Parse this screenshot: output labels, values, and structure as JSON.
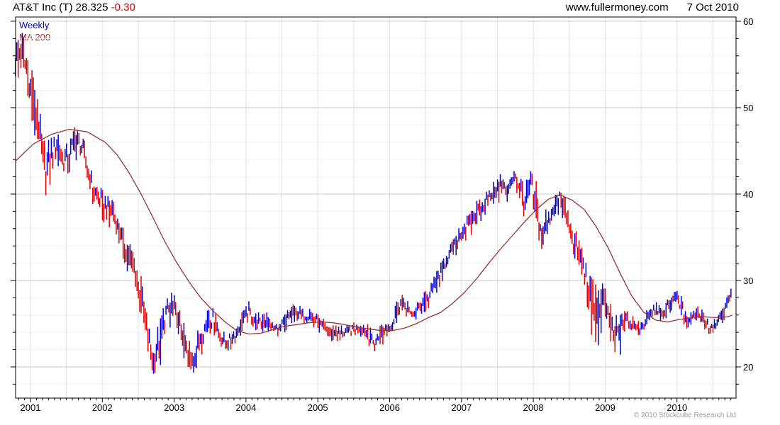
{
  "header": {
    "quote": "AT&T Inc (T) 28.325",
    "change": "-0.30",
    "site": "www.fullermoney.com",
    "date": "7 Oct 2010"
  },
  "footer": {
    "copyright": "© 2010 Stockcube Research Ltd"
  },
  "chart_data": {
    "type": "bar",
    "subtype": "weekly-ohlc-range-bars-with-ma",
    "title": "AT&T Inc (T) weekly with 200-day MA",
    "legend": [
      {
        "label": "Weekly",
        "color": "#0000cc"
      },
      {
        "label": "MA 200",
        "color": "#993333"
      }
    ],
    "colors": {
      "up_bar": "#0000dd",
      "down_bar": "#e00000",
      "ma_line": "#993333",
      "grid_major": "#c9c9c9",
      "grid_minor": "#f0f0f0",
      "grid_vert": "#e3e3e3",
      "frame": "#000000"
    },
    "x_range": [
      2000.7927,
      2010.8221
    ],
    "y_range": [
      16.39,
      60.49
    ],
    "y_ticks_major": [
      20,
      30,
      40,
      50,
      60
    ],
    "y_tick_minor_step": 2,
    "x_tick_years": [
      2001,
      2002,
      2003,
      2004,
      2005,
      2006,
      2007,
      2008,
      2009,
      2010
    ],
    "grid_vertical_step_years": 0.5,
    "bars_per_year": 52,
    "price_monthly": [
      [
        2000.79,
        58.5,
        53.0,
        56.0
      ],
      [
        2000.87,
        59.0,
        54.0,
        56.5
      ],
      [
        2000.96,
        57.0,
        51.5,
        54.0
      ],
      [
        2001.04,
        53.5,
        47.5,
        50.0
      ],
      [
        2001.12,
        50.0,
        44.5,
        47.5
      ],
      [
        2001.21,
        46.0,
        39.8,
        42.5
      ],
      [
        2001.29,
        46.5,
        41.5,
        44.5
      ],
      [
        2001.37,
        47.5,
        43.5,
        46.0
      ],
      [
        2001.46,
        46.5,
        42.0,
        44.0
      ],
      [
        2001.54,
        46.0,
        42.5,
        44.5
      ],
      [
        2001.62,
        47.8,
        44.0,
        46.5
      ],
      [
        2001.71,
        47.5,
        43.5,
        45.5
      ],
      [
        2001.79,
        45.5,
        41.0,
        43.0
      ],
      [
        2001.87,
        43.0,
        38.5,
        40.5
      ],
      [
        2001.96,
        41.0,
        37.5,
        39.5
      ],
      [
        2002.04,
        40.0,
        36.5,
        38.5
      ],
      [
        2002.12,
        39.5,
        36.0,
        38.0
      ],
      [
        2002.21,
        38.5,
        35.0,
        36.5
      ],
      [
        2002.29,
        36.5,
        32.5,
        34.5
      ],
      [
        2002.37,
        35.5,
        30.5,
        33.0
      ],
      [
        2002.46,
        34.0,
        29.0,
        31.0
      ],
      [
        2002.54,
        30.5,
        25.0,
        27.5
      ],
      [
        2002.62,
        27.0,
        21.5,
        24.0
      ],
      [
        2002.71,
        23.5,
        19.2,
        20.5
      ],
      [
        2002.79,
        25.0,
        19.5,
        23.0
      ],
      [
        2002.87,
        27.5,
        22.5,
        26.0
      ],
      [
        2002.96,
        28.6,
        25.0,
        27.0
      ],
      [
        2003.04,
        28.0,
        24.5,
        26.0
      ],
      [
        2003.12,
        26.0,
        21.5,
        23.5
      ],
      [
        2003.21,
        23.0,
        18.8,
        20.5
      ],
      [
        2003.29,
        23.5,
        19.5,
        21.5
      ],
      [
        2003.37,
        25.0,
        21.0,
        23.5
      ],
      [
        2003.46,
        26.5,
        23.5,
        25.0
      ],
      [
        2003.54,
        26.8,
        24.0,
        25.5
      ],
      [
        2003.62,
        25.5,
        22.5,
        24.0
      ],
      [
        2003.71,
        24.5,
        21.8,
        22.8
      ],
      [
        2003.79,
        24.5,
        22.0,
        23.2
      ],
      [
        2003.87,
        25.5,
        23.0,
        24.0
      ],
      [
        2003.96,
        26.5,
        24.0,
        25.5
      ],
      [
        2004.04,
        27.6,
        25.0,
        26.5
      ],
      [
        2004.12,
        26.8,
        24.3,
        25.5
      ],
      [
        2004.21,
        26.0,
        24.0,
        25.0
      ],
      [
        2004.29,
        26.3,
        24.2,
        25.3
      ],
      [
        2004.37,
        25.5,
        23.6,
        24.5
      ],
      [
        2004.46,
        25.3,
        23.5,
        24.3
      ],
      [
        2004.54,
        26.3,
        24.0,
        25.3
      ],
      [
        2004.62,
        27.2,
        25.0,
        26.2
      ],
      [
        2004.71,
        27.3,
        25.3,
        26.3
      ],
      [
        2004.79,
        26.8,
        24.8,
        25.8
      ],
      [
        2004.87,
        26.8,
        25.0,
        26.0
      ],
      [
        2004.96,
        26.3,
        24.5,
        25.5
      ],
      [
        2005.04,
        25.8,
        23.8,
        24.8
      ],
      [
        2005.12,
        25.3,
        23.3,
        24.3
      ],
      [
        2005.21,
        24.8,
        22.9,
        23.8
      ],
      [
        2005.29,
        24.8,
        23.0,
        24.0
      ],
      [
        2005.37,
        24.8,
        23.2,
        24.0
      ],
      [
        2005.46,
        25.0,
        23.3,
        24.2
      ],
      [
        2005.54,
        25.3,
        23.5,
        24.5
      ],
      [
        2005.62,
        25.5,
        23.5,
        24.5
      ],
      [
        2005.71,
        24.8,
        22.0,
        23.5
      ],
      [
        2005.79,
        23.8,
        21.8,
        22.5
      ],
      [
        2005.87,
        24.8,
        22.0,
        23.8
      ],
      [
        2005.96,
        25.3,
        23.5,
        24.5
      ],
      [
        2006.04,
        25.8,
        24.0,
        24.8
      ],
      [
        2006.12,
        28.4,
        25.5,
        27.3
      ],
      [
        2006.21,
        28.3,
        26.0,
        27.0
      ],
      [
        2006.29,
        27.0,
        25.4,
        26.0
      ],
      [
        2006.37,
        27.5,
        25.5,
        26.5
      ],
      [
        2006.46,
        28.5,
        26.3,
        27.5
      ],
      [
        2006.54,
        29.0,
        26.5,
        27.8
      ],
      [
        2006.62,
        30.5,
        28.0,
        29.5
      ],
      [
        2006.71,
        32.0,
        29.5,
        31.0
      ],
      [
        2006.79,
        33.5,
        31.0,
        32.5
      ],
      [
        2006.87,
        34.5,
        32.0,
        33.5
      ],
      [
        2006.96,
        36.0,
        33.5,
        35.0
      ],
      [
        2007.04,
        37.2,
        34.5,
        36.0
      ],
      [
        2007.12,
        37.8,
        35.0,
        36.5
      ],
      [
        2007.21,
        39.2,
        36.5,
        38.0
      ],
      [
        2007.29,
        39.5,
        37.0,
        38.5
      ],
      [
        2007.37,
        40.7,
        38.3,
        39.5
      ],
      [
        2007.46,
        41.7,
        39.0,
        40.5
      ],
      [
        2007.54,
        42.3,
        39.0,
        41.0
      ],
      [
        2007.62,
        41.8,
        38.8,
        40.5
      ],
      [
        2007.71,
        43.0,
        40.5,
        42.0
      ],
      [
        2007.79,
        42.8,
        40.0,
        41.5
      ],
      [
        2007.87,
        41.0,
        36.3,
        38.0
      ],
      [
        2007.96,
        42.7,
        38.5,
        41.5
      ],
      [
        2008.04,
        41.5,
        35.5,
        38.0
      ],
      [
        2008.12,
        37.5,
        33.4,
        35.0
      ],
      [
        2008.21,
        38.7,
        35.0,
        37.0
      ],
      [
        2008.29,
        39.8,
        36.5,
        38.5
      ],
      [
        2008.37,
        40.3,
        38.0,
        39.5
      ],
      [
        2008.46,
        39.5,
        36.0,
        37.5
      ],
      [
        2008.54,
        37.5,
        33.5,
        35.0
      ],
      [
        2008.62,
        35.0,
        31.5,
        33.0
      ],
      [
        2008.71,
        33.0,
        29.5,
        31.0
      ],
      [
        2008.79,
        31.0,
        24.5,
        28.0
      ],
      [
        2008.87,
        29.5,
        21.2,
        26.0
      ],
      [
        2008.96,
        29.7,
        24.5,
        28.0
      ],
      [
        2009.04,
        28.5,
        24.0,
        25.5
      ],
      [
        2009.12,
        26.0,
        21.8,
        23.5
      ],
      [
        2009.21,
        26.0,
        21.3,
        24.5
      ],
      [
        2009.29,
        26.6,
        24.0,
        25.5
      ],
      [
        2009.37,
        26.0,
        23.8,
        24.8
      ],
      [
        2009.46,
        25.3,
        23.6,
        24.3
      ],
      [
        2009.54,
        26.0,
        24.0,
        25.0
      ],
      [
        2009.62,
        27.2,
        25.0,
        26.3
      ],
      [
        2009.71,
        27.5,
        25.8,
        26.8
      ],
      [
        2009.79,
        27.2,
        25.2,
        26.0
      ],
      [
        2009.87,
        28.0,
        25.8,
        27.0
      ],
      [
        2009.96,
        29.1,
        27.0,
        28.3
      ],
      [
        2010.04,
        29.0,
        26.5,
        27.5
      ],
      [
        2010.12,
        27.0,
        24.3,
        25.3
      ],
      [
        2010.21,
        26.8,
        25.0,
        26.0
      ],
      [
        2010.29,
        27.0,
        25.5,
        26.3
      ],
      [
        2010.37,
        26.5,
        24.5,
        25.5
      ],
      [
        2010.46,
        25.4,
        23.5,
        24.3
      ],
      [
        2010.54,
        25.6,
        23.9,
        24.8
      ],
      [
        2010.62,
        26.8,
        24.8,
        26.0
      ],
      [
        2010.71,
        28.3,
        26.3,
        27.5
      ],
      [
        2010.77,
        29.4,
        27.3,
        28.33
      ]
    ],
    "ma200": [
      [
        2000.79,
        43.8
      ],
      [
        2001.04,
        45.8
      ],
      [
        2001.29,
        46.9
      ],
      [
        2001.54,
        47.5
      ],
      [
        2001.79,
        47.2
      ],
      [
        2002.04,
        46.0
      ],
      [
        2002.21,
        44.5
      ],
      [
        2002.37,
        42.5
      ],
      [
        2002.54,
        40.0
      ],
      [
        2002.71,
        37.2
      ],
      [
        2002.87,
        34.5
      ],
      [
        2003.04,
        32.0
      ],
      [
        2003.21,
        29.8
      ],
      [
        2003.37,
        28.0
      ],
      [
        2003.54,
        26.5
      ],
      [
        2003.71,
        25.2
      ],
      [
        2003.87,
        24.2
      ],
      [
        2004.04,
        23.8
      ],
      [
        2004.21,
        23.9
      ],
      [
        2004.37,
        24.3
      ],
      [
        2004.54,
        24.7
      ],
      [
        2004.71,
        24.9
      ],
      [
        2004.87,
        25.1
      ],
      [
        2005.04,
        25.2
      ],
      [
        2005.21,
        25.1
      ],
      [
        2005.37,
        24.9
      ],
      [
        2005.54,
        24.6
      ],
      [
        2005.71,
        24.4
      ],
      [
        2005.87,
        24.2
      ],
      [
        2006.04,
        24.2
      ],
      [
        2006.21,
        24.5
      ],
      [
        2006.37,
        25.0
      ],
      [
        2006.54,
        25.7
      ],
      [
        2006.71,
        26.3
      ],
      [
        2006.87,
        27.3
      ],
      [
        2007.04,
        28.6
      ],
      [
        2007.21,
        30.2
      ],
      [
        2007.37,
        31.9
      ],
      [
        2007.54,
        33.6
      ],
      [
        2007.71,
        35.2
      ],
      [
        2007.87,
        36.7
      ],
      [
        2008.04,
        38.2
      ],
      [
        2008.21,
        39.4
      ],
      [
        2008.37,
        39.9
      ],
      [
        2008.54,
        39.3
      ],
      [
        2008.71,
        38.2
      ],
      [
        2008.87,
        36.3
      ],
      [
        2009.04,
        33.8
      ],
      [
        2009.21,
        30.8
      ],
      [
        2009.37,
        28.2
      ],
      [
        2009.54,
        26.3
      ],
      [
        2009.71,
        25.4
      ],
      [
        2009.87,
        25.2
      ],
      [
        2010.04,
        25.5
      ],
      [
        2010.21,
        25.7
      ],
      [
        2010.37,
        25.8
      ],
      [
        2010.54,
        25.7
      ],
      [
        2010.71,
        25.8
      ],
      [
        2010.77,
        26.0
      ]
    ]
  }
}
